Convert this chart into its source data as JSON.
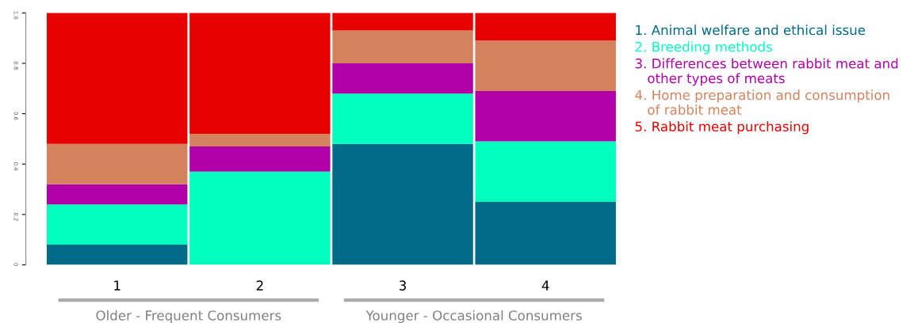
{
  "chart_data": {
    "type": "bar",
    "stacked": true,
    "categories": [
      "1",
      "2",
      "3",
      "4"
    ],
    "series": [
      {
        "name": "1. Animal welfare and ethical issue",
        "color": "#006a88",
        "values": [
          0.08,
          0,
          0.48,
          0.25
        ]
      },
      {
        "name": "2. Breeding methods",
        "color": "#00ffbf",
        "values": [
          0.16,
          0.37,
          0.2,
          0.24
        ]
      },
      {
        "name": "3. Differences between rabbit meat and\n   other types of meats",
        "color": "#b000a8",
        "values": [
          0.08,
          0.1,
          0.12,
          0.2
        ]
      },
      {
        "name": "4. Home preparation and consumption\n   of rabbit meat",
        "color": "#d4825e",
        "values": [
          0.16,
          0.05,
          0.13,
          0.2
        ]
      },
      {
        "name": "5. Rabbit meat purchasing",
        "color": "#e60000",
        "values": [
          0.52,
          0.48,
          0.07,
          0.11
        ]
      }
    ],
    "ylim": [
      0,
      1
    ],
    "yticks": [
      {
        "value": 0,
        "label": "0"
      },
      0.2,
      0.4,
      0.6,
      0.8,
      {
        "value": 1,
        "label": "1.0"
      }
    ],
    "grid": false,
    "legend": "right",
    "annotations": [
      "Older - Frequent Consumers",
      "Younger - Occasional Consumers"
    ]
  }
}
